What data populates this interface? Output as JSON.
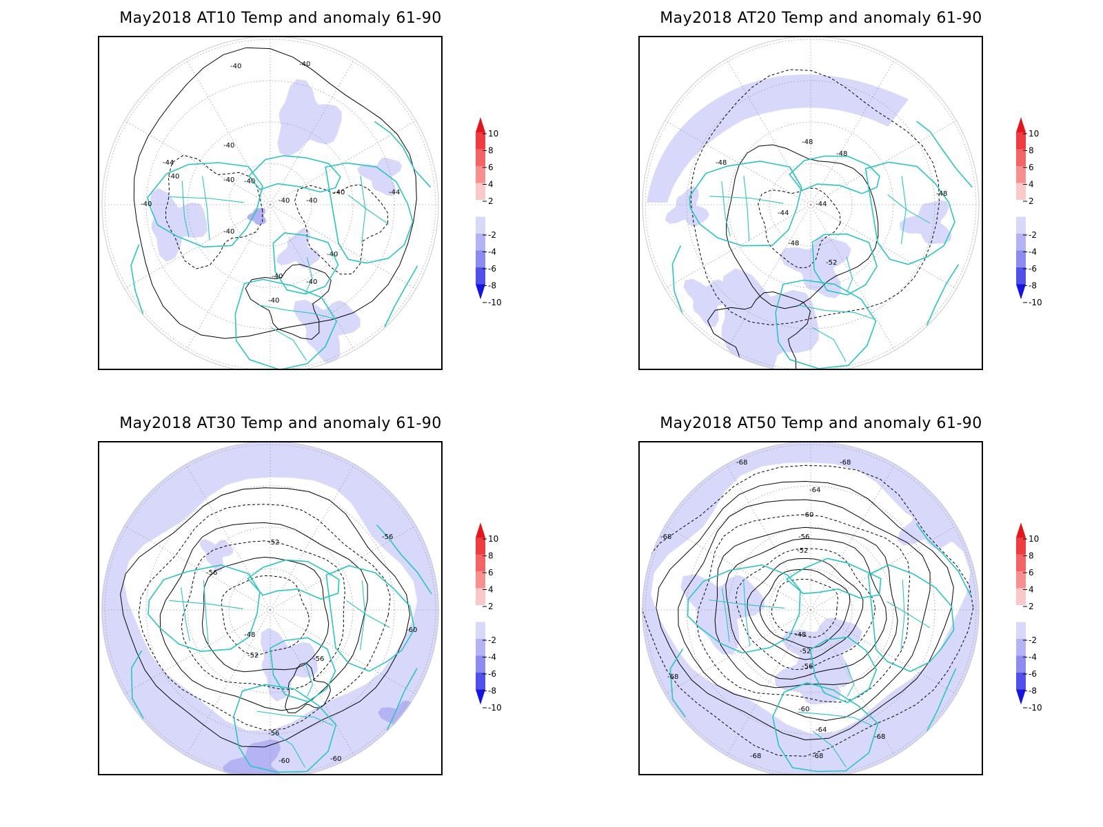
{
  "panels": [
    {
      "title": "May2018 AT10 Temp and anomaly 61-90",
      "labels": [
        "-40",
        "-40",
        "-40",
        "-44",
        "-40",
        "-40",
        "-40",
        "-40",
        "-40",
        "-40",
        "-44",
        "-40",
        "-40",
        "-40",
        "-40",
        "-40",
        "-40"
      ]
    },
    {
      "title": "May2018 AT20 Temp and anomaly 61-90",
      "labels": [
        "-48",
        "-48",
        "-48",
        "-44",
        "-44",
        "-48",
        "-52",
        "-48"
      ]
    },
    {
      "title": "May2018 AT30 Temp and anomaly 61-90",
      "labels": [
        "-52",
        "-56",
        "-56",
        "-48",
        "-52",
        "-56",
        "-56",
        "-60",
        "-60",
        "-60"
      ]
    },
    {
      "title": "May2018 AT50 Temp and anomaly 61-90",
      "labels": [
        "-68",
        "-68",
        "-64",
        "-60",
        "-56",
        "-52",
        "-48",
        "-52",
        "-56",
        "-60",
        "-64",
        "-68",
        "-68",
        "-68",
        "-68",
        "-68"
      ]
    }
  ],
  "legend": {
    "ticks": [
      "10",
      "8",
      "6",
      "4",
      "2",
      "-2",
      "-4",
      "-6",
      "-8",
      "-10"
    ],
    "colors": [
      "#e8141c",
      "#f03c40",
      "#f56465",
      "#f88f8f",
      "#fbc8c8",
      "#ffffff",
      "#d8d8f8",
      "#b4b4f4",
      "#8c8cf0",
      "#5050ec",
      "#1414e8"
    ]
  },
  "colors": {
    "coast": "#22c8c0",
    "anomaly_light": "#d8d8fa",
    "anomaly_mid": "#b4b4f4",
    "grid": "#999999"
  }
}
